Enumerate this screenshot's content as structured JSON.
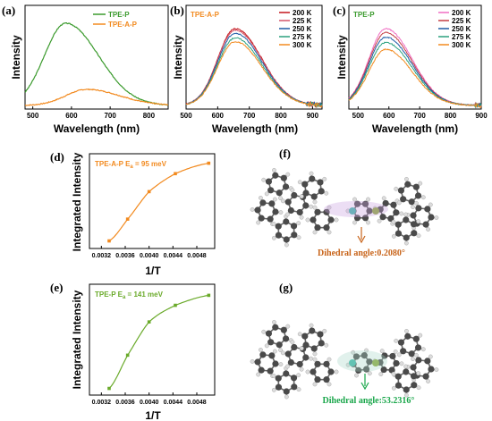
{
  "colors": {
    "tpe_p_green": "#3a9a2c",
    "tpe_a_p_orange": "#f28a1f",
    "t200": "#c4161c",
    "t225": "#d2566a",
    "t250": "#1e5aa6",
    "t275": "#2aa17e",
    "t300": "#f28a1f",
    "t200_c": "#f06ec3",
    "t225_c": "#c43e44",
    "t250_c": "#1e5aa6",
    "t275_c": "#2aa17e",
    "t300_c": "#f28a1f",
    "fit_d": "#f28a1f",
    "fit_e": "#6aaa2a",
    "dihedral_f": "#c8641a",
    "dihedral_g": "#19a64a"
  },
  "panels": {
    "a": {
      "label": "(a)",
      "xlabel": "Wavelength (nm)",
      "ylabel": "Intensity",
      "legend": [
        "TPE-P",
        "TPE-A-P"
      ]
    },
    "b": {
      "label": "(b)",
      "xlabel": "Wavelength (nm)",
      "ylabel": "Intensity",
      "tag": "TPE-A-P",
      "legend": [
        "200 K",
        "225 K",
        "250 K",
        "275 K",
        "300 K"
      ]
    },
    "c": {
      "label": "(c)",
      "xlabel": "Wavelength (nm)",
      "ylabel": "Intensity",
      "tag": "TPE-P",
      "legend": [
        "200 K",
        "225 K",
        "250 K",
        "275 K",
        "300 K"
      ]
    },
    "d": {
      "label": "(d)",
      "xlabel": "1/T",
      "ylabel": "Integrated Intensity",
      "annotation": "TPE-A-P  E",
      "ann_sub": "a",
      "ann_val": " = 95 meV"
    },
    "e": {
      "label": "(e)",
      "xlabel": "1/T",
      "ylabel": "Integrated Intensity",
      "annotation": "TPE-P   E",
      "ann_sub": "a",
      "ann_val": " = 141 meV"
    },
    "f": {
      "label": "(f)",
      "caption": "Dihedral angle:0.2080°"
    },
    "g": {
      "label": "(g)",
      "caption": "Dihedral angle:53.2316°"
    }
  },
  "chart_data": [
    {
      "type": "line",
      "panel": "a",
      "xlabel": "Wavelength (nm)",
      "ylabel": "Intensity",
      "x_ticks": [
        500,
        600,
        700,
        800
      ],
      "xlim": [
        480,
        850
      ],
      "series": [
        {
          "name": "TPE-P",
          "peak_nm": 585,
          "relative_intensity": 1.0
        },
        {
          "name": "TPE-A-P",
          "peak_nm": 640,
          "relative_intensity": 0.18
        }
      ]
    },
    {
      "type": "line",
      "panel": "b",
      "xlabel": "Wavelength (nm)",
      "ylabel": "Intensity",
      "x_ticks": [
        500,
        600,
        700,
        800,
        900
      ],
      "xlim": [
        500,
        930
      ],
      "series": [
        {
          "name": "200 K",
          "peak_nm": 655,
          "relative_intensity": 1.0
        },
        {
          "name": "225 K",
          "peak_nm": 655,
          "relative_intensity": 0.98
        },
        {
          "name": "250 K",
          "peak_nm": 655,
          "relative_intensity": 0.94
        },
        {
          "name": "275 K",
          "peak_nm": 655,
          "relative_intensity": 0.88
        },
        {
          "name": "300 K",
          "peak_nm": 655,
          "relative_intensity": 0.83
        }
      ]
    },
    {
      "type": "line",
      "panel": "c",
      "xlabel": "Wavelength (nm)",
      "ylabel": "Intensity",
      "x_ticks": [
        500,
        600,
        700,
        800,
        900
      ],
      "xlim": [
        470,
        900
      ],
      "series": [
        {
          "name": "200 K",
          "peak_nm": 590,
          "relative_intensity": 1.0
        },
        {
          "name": "225 K",
          "peak_nm": 590,
          "relative_intensity": 0.95
        },
        {
          "name": "250 K",
          "peak_nm": 590,
          "relative_intensity": 0.89
        },
        {
          "name": "275 K",
          "peak_nm": 590,
          "relative_intensity": 0.82
        },
        {
          "name": "300 K",
          "peak_nm": 590,
          "relative_intensity": 0.73
        }
      ]
    },
    {
      "type": "scatter",
      "panel": "d",
      "xlabel": "1/T",
      "ylabel": "Integrated Intensity",
      "x_ticks": [
        0.0032,
        0.0036,
        0.004,
        0.0044,
        0.0048
      ],
      "xlim": [
        0.003,
        0.0051
      ],
      "ylim": [
        0,
        1
      ],
      "points": [
        {
          "x": 0.00333,
          "y": 0.08
        },
        {
          "x": 0.00364,
          "y": 0.31
        },
        {
          "x": 0.004,
          "y": 0.6
        },
        {
          "x": 0.00444,
          "y": 0.79
        },
        {
          "x": 0.005,
          "y": 0.9
        }
      ]
    },
    {
      "type": "scatter",
      "panel": "e",
      "xlabel": "1/T",
      "ylabel": "Integrated Intensity",
      "x_ticks": [
        0.0032,
        0.0036,
        0.004,
        0.0044,
        0.0048
      ],
      "xlim": [
        0.003,
        0.0051
      ],
      "ylim": [
        0,
        1
      ],
      "points": [
        {
          "x": 0.00333,
          "y": 0.06
        },
        {
          "x": 0.00364,
          "y": 0.36
        },
        {
          "x": 0.004,
          "y": 0.66
        },
        {
          "x": 0.00444,
          "y": 0.81
        },
        {
          "x": 0.005,
          "y": 0.9
        }
      ]
    }
  ]
}
